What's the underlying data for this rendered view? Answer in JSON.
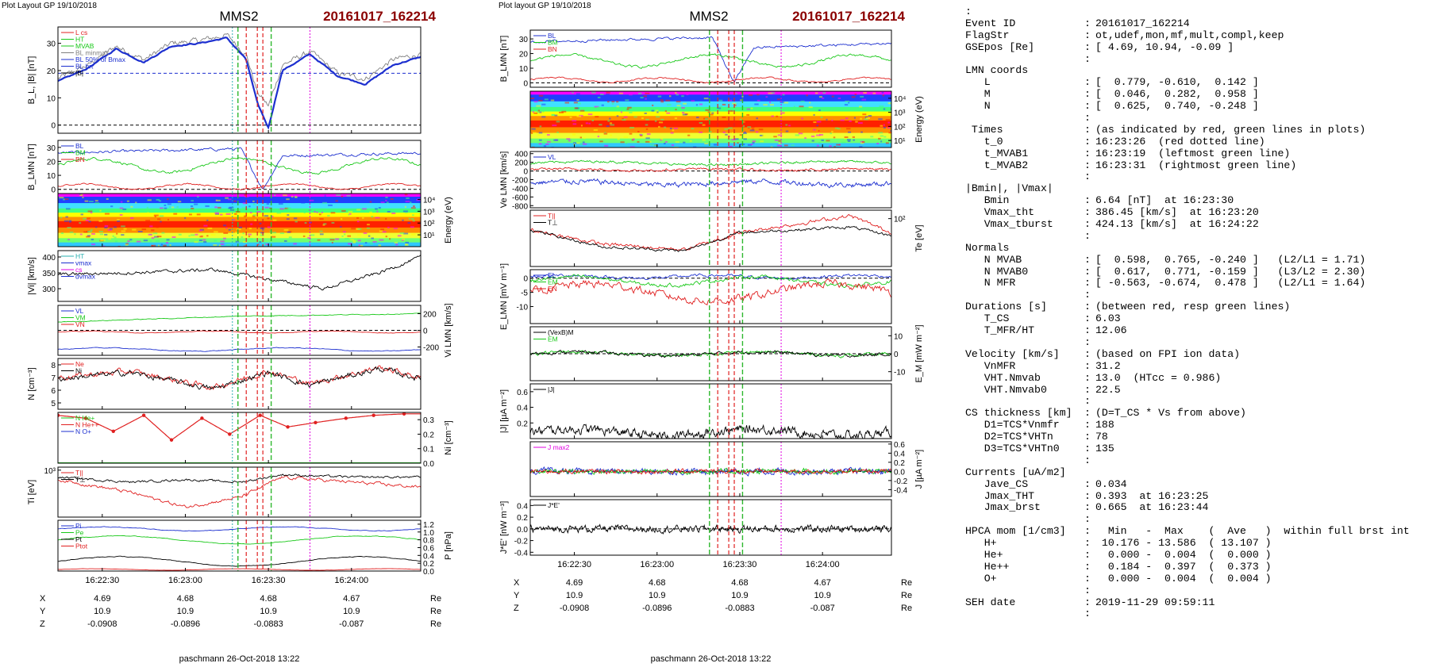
{
  "left": {
    "header": "Plot Layout GP 19/10/2018",
    "spacecraft": "MMS2",
    "event": "20161017_162214",
    "footer": "paschmann 26-Oct-2018 13:22",
    "time_ticks": [
      "16:22:30",
      "16:23:00",
      "16:23:30",
      "16:24:00"
    ],
    "pos_rows": [
      {
        "label": "X",
        "vals": [
          "4.69",
          "4.68",
          "4.68",
          "4.67"
        ],
        "unit": "Re"
      },
      {
        "label": "Y",
        "vals": [
          "10.9",
          "10.9",
          "10.9",
          "10.9"
        ],
        "unit": "Re"
      },
      {
        "label": "Z",
        "vals": [
          "-0.0908",
          "-0.0896",
          "-0.0883",
          "-0.087"
        ],
        "unit": "Re"
      }
    ],
    "panels": [
      {
        "ylabel": "B_L, |B| [nT]",
        "ticks": [
          "0",
          "10",
          "20",
          "30"
        ],
        "legend": [
          "L cs",
          "HT",
          "MVAB",
          "BL minmax",
          "BL 50% of Bmax",
          "BL hrt",
          "|B|"
        ]
      },
      {
        "ylabel": "B_LMN [nT]",
        "ticks": [
          "0",
          "10",
          "20",
          "30"
        ],
        "legend": [
          "BL",
          "BM",
          "BN"
        ]
      },
      {
        "ylabel_right": "Energy (eV)",
        "ticks": [
          "10^1",
          "10^2",
          "10^3",
          "10^4"
        ]
      },
      {
        "ylabel": "|Vi| [km/s]",
        "ticks": [
          "300",
          "350",
          "400"
        ],
        "legend": [
          "HT",
          "vmax",
          "cs",
          "dvmax"
        ]
      },
      {
        "ylabel_right": "Vi LMN [km/s]",
        "ticks": [
          "-200",
          "0",
          "200"
        ],
        "legend": [
          "VL",
          "VM",
          "VN"
        ]
      },
      {
        "ylabel": "N [cm^-3]",
        "ticks": [
          "5",
          "6",
          "7",
          "8"
        ],
        "legend": [
          "Ne",
          "Ni"
        ]
      },
      {
        "ylabel_right": "Ni [cm^-3]",
        "ticks": [
          "0.0",
          "0.1",
          "0.2",
          "0.3"
        ],
        "legend": [
          "N He+",
          "N He++",
          "N O+"
        ]
      },
      {
        "ylabel": "Ti [eV]",
        "ticks": [
          "10^3"
        ],
        "legend": [
          "T||",
          "T⊥"
        ]
      },
      {
        "ylabel_right": "P [nPa]",
        "ticks": [
          "0.0",
          "0.2",
          "0.4",
          "0.6",
          "0.8",
          "1.0",
          "1.2"
        ],
        "legend": [
          "Pi",
          "Pe",
          "Pt",
          "Ptot"
        ]
      }
    ]
  },
  "middle": {
    "header": "Plot layout GP 19/10/2018",
    "spacecraft": "MMS2",
    "event": "20161017_162214",
    "footer": "paschmann 26-Oct-2018 13:22",
    "time_ticks": [
      "16:22:30",
      "16:23:00",
      "16:23:30",
      "16:24:00"
    ],
    "pos_rows": [
      {
        "label": "X",
        "vals": [
          "4.69",
          "4.68",
          "4.68",
          "4.67"
        ],
        "unit": "Re"
      },
      {
        "label": "Y",
        "vals": [
          "10.9",
          "10.9",
          "10.9",
          "10.9"
        ],
        "unit": "Re"
      },
      {
        "label": "Z",
        "vals": [
          "-0.0908",
          "-0.0896",
          "-0.0883",
          "-0.087"
        ],
        "unit": "Re"
      }
    ],
    "panels": [
      {
        "ylabel": "B_LMN [nT]",
        "ticks": [
          "0",
          "10",
          "20",
          "30"
        ],
        "legend": [
          "BL",
          "BM",
          "BN"
        ]
      },
      {
        "ylabel_right": "Energy (eV)",
        "ticks": [
          "10^1",
          "10^2",
          "10^3",
          "10^4"
        ]
      },
      {
        "ylabel": "Ve LMN [km/s]",
        "ticks": [
          "-800",
          "-600",
          "-400",
          "-200",
          "0",
          "200",
          "400"
        ],
        "legend": [
          "VL"
        ]
      },
      {
        "ylabel_right": "Te [eV]",
        "ticks": [
          "10^2"
        ],
        "legend": [
          "T||",
          "T⊥"
        ]
      },
      {
        "ylabel": "E_LMN [mV m^-1]",
        "ticks": [
          "-10",
          "-5",
          "0"
        ],
        "legend": [
          "EL",
          "EM",
          "EN"
        ]
      },
      {
        "ylabel_right": "E_M [mW m^-2]",
        "ticks": [
          "-10",
          "0",
          "10"
        ],
        "legend": [
          "(VexB)M",
          "EM"
        ]
      },
      {
        "ylabel": "|J| [µA m^-2]",
        "ticks": [
          "0.2",
          "0.4",
          "0.6"
        ],
        "legend": [
          "|J|"
        ]
      },
      {
        "ylabel_right": "J [µA m^-2]",
        "ticks": [
          "-0.4",
          "-0.2",
          "0.0",
          "0.2",
          "0.4",
          "0.6"
        ],
        "legend": [
          "J max2"
        ]
      },
      {
        "ylabel": "J*E' [nW m^-3]",
        "ticks": [
          "-0.4",
          "-0.2",
          "0.0",
          "0.2",
          "0.4"
        ],
        "legend": [
          "J*E'"
        ]
      }
    ]
  },
  "info": {
    "lines": [
      {
        "k": ":",
        "v": ""
      },
      {
        "k": "Event ID",
        "v": "20161017_162214"
      },
      {
        "k": "FlagStr",
        "v": "ot,udef,mon,mf,mult,compl,keep"
      },
      {
        "k": "GSEpos [Re]",
        "v": "[ 4.69, 10.94, -0.09 ]"
      },
      {
        "k": "",
        "v": ""
      },
      {
        "k": "LMN coords",
        "v": ""
      },
      {
        "k": "   L",
        "v": "[  0.779, -0.610,  0.142 ]"
      },
      {
        "k": "   M",
        "v": "[  0.046,  0.282,  0.958 ]"
      },
      {
        "k": "   N",
        "v": "[  0.625,  0.740, -0.248 ]"
      },
      {
        "k": "",
        "v": ""
      },
      {
        "k": " Times",
        "v": "(as indicated by red, green lines in plots)"
      },
      {
        "k": "   t_0",
        "v": "16:23:26  (red dotted line)"
      },
      {
        "k": "   t_MVAB1",
        "v": "16:23:19  (leftmost green line)"
      },
      {
        "k": "   t_MVAB2",
        "v": "16:23:31  (rightmost green line)"
      },
      {
        "k": "",
        "v": ""
      },
      {
        "k": "|Bmin|, |Vmax|",
        "v": ""
      },
      {
        "k": "   Bmin",
        "v": "6.64 [nT]  at 16:23:30"
      },
      {
        "k": "   Vmax_tht",
        "v": "386.45 [km/s]  at 16:23:20"
      },
      {
        "k": "   Vmax_tburst",
        "v": "424.13 [km/s]  at 16:24:22"
      },
      {
        "k": "",
        "v": ""
      },
      {
        "k": "Normals",
        "v": ""
      },
      {
        "k": "   N MVAB",
        "v": "[  0.598,  0.765, -0.240 ]   (L2/L1 = 1.71)"
      },
      {
        "k": "   N MVAB0",
        "v": "[  0.617,  0.771, -0.159 ]   (L3/L2 = 2.30)"
      },
      {
        "k": "   N MFR",
        "v": "[ -0.563, -0.674,  0.478 ]   (L2/L1 = 1.64)"
      },
      {
        "k": "",
        "v": ""
      },
      {
        "k": "Durations [s]",
        "v": "(between red, resp green lines)"
      },
      {
        "k": "   T_CS",
        "v": "6.03"
      },
      {
        "k": "   T_MFR/HT",
        "v": "12.06"
      },
      {
        "k": "",
        "v": ""
      },
      {
        "k": "Velocity [km/s]",
        "v": "(based on FPI ion data)"
      },
      {
        "k": "   VnMFR",
        "v": "31.2"
      },
      {
        "k": "   VHT.Nmvab",
        "v": "13.0  (HTcc = 0.986)"
      },
      {
        "k": "   VHT.Nmvab0",
        "v": "22.5"
      },
      {
        "k": "",
        "v": ""
      },
      {
        "k": "CS thickness [km]",
        "v": "(D=T_CS * Vs from above)"
      },
      {
        "k": "   D1=TCS*Vnmfr",
        "v": "188"
      },
      {
        "k": "   D2=TCS*VHTn",
        "v": "78"
      },
      {
        "k": "   D3=TCS*VHTn0",
        "v": "135"
      },
      {
        "k": "",
        "v": ""
      },
      {
        "k": "Currents [uA/m2]",
        "v": ""
      },
      {
        "k": "   Jave_CS",
        "v": "0.034"
      },
      {
        "k": "   Jmax_THT",
        "v": "0.393  at 16:23:25"
      },
      {
        "k": "   Jmax_brst",
        "v": "0.665  at 16:23:44"
      },
      {
        "k": "",
        "v": ""
      },
      {
        "k": "HPCA mom [1/cm3]",
        "v": "  Min   -  Max    (  Ave   )  within full brst int"
      },
      {
        "k": "   H+",
        "v": " 10.176 - 13.586  ( 13.107 )"
      },
      {
        "k": "   He+",
        "v": "  0.000 -  0.004  (  0.000 )"
      },
      {
        "k": "   He++",
        "v": "  0.184 -  0.397  (  0.373 )"
      },
      {
        "k": "   O+",
        "v": "  0.000 -  0.004  (  0.004 )"
      },
      {
        "k": "",
        "v": ""
      },
      {
        "k": "SEH date",
        "v": "2019-11-29 09:59:11"
      },
      {
        "k": "",
        "v": ""
      }
    ]
  },
  "chart_data": [
    {
      "type": "line",
      "title": "MMS2 20161017_162214",
      "xlabel": "",
      "x_ticks": [
        "16:22:30",
        "16:23:00",
        "16:23:30",
        "16:24:00"
      ],
      "xlim": [
        "16:22:14",
        "16:24:25"
      ],
      "markers": {
        "t_0": "16:23:26",
        "t_MVAB1": "16:23:19",
        "t_MVAB2": "16:23:31"
      },
      "panels": [
        {
          "ylabel": "B_L, |B| [nT]",
          "ylim": [
            -3,
            36
          ],
          "series": [
            {
              "name": "|B|",
              "color": "#808080",
              "x": [
                "16:22:14",
                "16:22:25",
                "16:22:35",
                "16:22:45",
                "16:22:55",
                "16:23:05",
                "16:23:15",
                "16:23:22",
                "16:23:26",
                "16:23:30",
                "16:23:35",
                "16:23:45",
                "16:23:55",
                "16:24:05",
                "16:24:15",
                "16:24:25"
              ],
              "y": [
                17,
                22,
                29,
                24,
                30,
                31,
                33,
                26,
                12,
                7,
                22,
                27,
                19,
                17,
                24,
                26
              ]
            },
            {
              "name": "BL hrt",
              "color": "#1c2fcf",
              "x": [
                "16:22:14",
                "16:22:25",
                "16:22:35",
                "16:22:45",
                "16:22:55",
                "16:23:05",
                "16:23:15",
                "16:23:22",
                "16:23:26",
                "16:23:30",
                "16:23:35",
                "16:23:45",
                "16:23:55",
                "16:24:05",
                "16:24:15",
                "16:24:25"
              ],
              "y": [
                16,
                21,
                28,
                23,
                29,
                30,
                32,
                24,
                8,
                -1,
                20,
                26,
                18,
                15,
                22,
                25
              ]
            }
          ]
        },
        {
          "ylabel": "B_LMN [nT]",
          "ylim": [
            -3,
            35
          ],
          "series": [
            {
              "name": "BL",
              "color": "#1c2fcf",
              "y_range": [
                -1,
                32
              ]
            },
            {
              "name": "BM",
              "color": "#18c818",
              "y_range": [
                8,
                26
              ]
            },
            {
              "name": "BN",
              "color": "#e02020",
              "y_range": [
                -2,
                6
              ]
            }
          ]
        },
        {
          "ylabel": "|Vi| [km/s]",
          "ylim": [
            260,
            420
          ],
          "series": [
            {
              "name": "|Vi|",
              "color": "#000000",
              "y_range": [
                270,
                410
              ]
            }
          ]
        },
        {
          "ylabel": "N [cm^-3]",
          "ylim": [
            4.5,
            8.5
          ],
          "series": [
            {
              "name": "Ne",
              "color": "#e02020",
              "y_range": [
                5,
                8.2
              ]
            },
            {
              "name": "Ni",
              "color": "#000000",
              "y_range": [
                5,
                8.1
              ]
            }
          ]
        },
        {
          "ylabel": "Ni [cm^-3]",
          "ylim": [
            0,
            0.35
          ],
          "series": [
            {
              "name": "N He++",
              "color": "#e02020",
              "x": [
                "16:22:14",
                "16:22:24",
                "16:22:34",
                "16:22:45",
                "16:22:55",
                "16:23:06",
                "16:23:16",
                "16:23:27",
                "16:23:37",
                "16:23:47",
                "16:23:58",
                "16:24:08",
                "16:24:19"
              ],
              "y": [
                0.33,
                0.31,
                0.22,
                0.33,
                0.16,
                0.31,
                0.2,
                0.33,
                0.25,
                0.28,
                0.31,
                0.33,
                0.34
              ]
            },
            {
              "name": "N He+",
              "color": "#18c818",
              "y_const": 0.0
            },
            {
              "name": "N O+",
              "color": "#1c2fcf",
              "y_const": 0.0
            }
          ]
        },
        {
          "ylabel": "P [nPa]",
          "ylim": [
            0,
            1.3
          ],
          "series": [
            {
              "name": "Pi",
              "color": "#1c2fcf",
              "y_range": [
                1.0,
                1.15
              ]
            },
            {
              "name": "Pe",
              "color": "#18c818",
              "y_range": [
                0.6,
                0.95
              ]
            },
            {
              "name": "Pt",
              "color": "#000000",
              "y_range": [
                0.1,
                0.4
              ]
            },
            {
              "name": "Ptot",
              "color": "#e02020",
              "y_range": [
                0.0,
                0.1
              ]
            }
          ]
        }
      ]
    }
  ]
}
